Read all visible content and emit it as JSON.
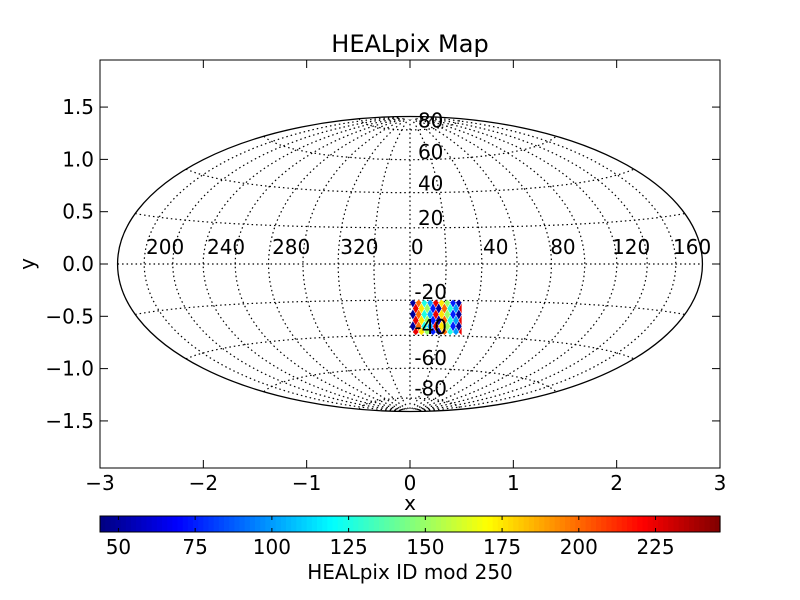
{
  "chart_data": {
    "type": "heatmap",
    "title": "HEALpix Map",
    "xlabel": "x",
    "ylabel": "y",
    "xlim": [
      -3,
      3
    ],
    "ylim": [
      -1.95,
      1.95
    ],
    "x_ticks": [
      -3,
      -2,
      -1,
      0,
      1,
      2,
      3
    ],
    "x_tick_labels": [
      "−3",
      "−2",
      "−1",
      "0",
      "1",
      "2",
      "3"
    ],
    "y_ticks": [
      1.5,
      1.0,
      0.5,
      0.0,
      -0.5,
      -1.0,
      -1.5
    ],
    "y_tick_labels": [
      "1.5",
      "1.0",
      "0.5",
      "0.0",
      "−0.5",
      "−1.0",
      "−1.5"
    ],
    "projection": "aitoff-hammer ellipse",
    "ellipse_semi_axes": [
      2.83,
      1.41
    ],
    "grid": true,
    "longitude_lines": [
      0,
      40,
      80,
      120,
      160,
      200,
      240,
      280,
      320
    ],
    "latitude_lines": [
      -80,
      -60,
      -40,
      -20,
      20,
      40,
      60,
      80
    ],
    "longitude_labels": [
      "200",
      "240",
      "280",
      "320",
      "0",
      "40",
      "80",
      "120",
      "160"
    ],
    "longitude_label_positions": [
      -2.37,
      -1.78,
      -1.15,
      -0.49,
      0.07,
      0.83,
      1.48,
      2.14,
      2.73
    ],
    "latitude_labels": [
      "80",
      "60",
      "40",
      "20",
      "-20",
      "-40",
      "-60",
      "-80"
    ],
    "latitude_label_positions": [
      1.37,
      1.07,
      0.77,
      0.44,
      -0.27,
      -0.6,
      -0.9,
      -1.19
    ],
    "pixel_patch": {
      "x_range": [
        0.0,
        0.5
      ],
      "y_range": [
        -0.68,
        -0.34
      ],
      "value_range": [
        44,
        246
      ],
      "description_values": [
        50,
        100,
        150,
        200,
        225,
        75,
        125,
        175
      ]
    },
    "colorbar": {
      "label": "HEALpix ID mod 250",
      "ticks": [
        50,
        75,
        100,
        125,
        150,
        175,
        200,
        225
      ],
      "range": [
        44,
        246
      ],
      "colormap": "jet"
    }
  }
}
